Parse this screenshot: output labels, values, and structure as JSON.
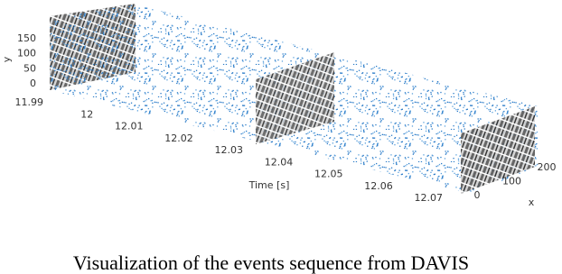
{
  "figure": {
    "y_axis": {
      "label": "y",
      "ticks": [
        0,
        50,
        100,
        150
      ]
    },
    "time_axis": {
      "label": "Time [s]",
      "ticks": [
        11.99,
        12,
        12.01,
        12.02,
        12.03,
        12.04,
        12.05,
        12.06,
        12.07
      ]
    },
    "x_axis": {
      "label": "x",
      "ticks": [
        0,
        100,
        200
      ]
    }
  },
  "caption": "Visualization of the events sequence from DAVIS"
}
